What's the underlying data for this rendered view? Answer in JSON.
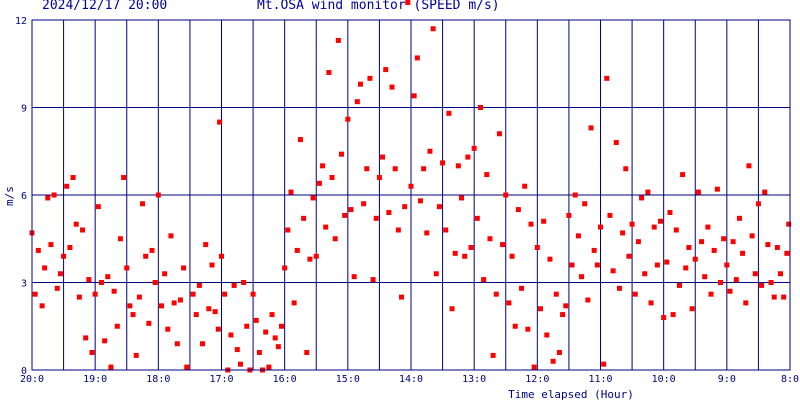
{
  "header": {
    "datetime": "2024/12/17 20:00",
    "title": "Mt.OSA wind monitor (SPEED m/s)"
  },
  "chart_data": {
    "type": "scatter",
    "ylabel": "m/s",
    "xlabel": "Time elapsed (Hour)",
    "ylim": [
      0,
      12
    ],
    "y_ticks": [
      0,
      3,
      6,
      9,
      12
    ],
    "x_ticks": [
      "20:0",
      "19:0",
      "18:0",
      "17:0",
      "16:0",
      "15:0",
      "14:0",
      "13:0",
      "12:0",
      "11:0",
      "10:0",
      "9:0",
      "8:0"
    ],
    "x_direction": "time runs backwards from 20:00 at left to 08:00 at right",
    "grid": true,
    "marker_color": "#ff0000",
    "grid_color": "#000080",
    "series": [
      {
        "points": [
          [
            0.0,
            4.7
          ],
          [
            0.05,
            2.6
          ],
          [
            0.1,
            4.1
          ],
          [
            0.16,
            2.2
          ],
          [
            0.2,
            3.5
          ],
          [
            0.25,
            5.9
          ],
          [
            0.3,
            4.3
          ],
          [
            0.35,
            6.0
          ],
          [
            0.4,
            2.8
          ],
          [
            0.45,
            3.3
          ],
          [
            0.5,
            3.9
          ],
          [
            0.55,
            6.3
          ],
          [
            0.6,
            4.2
          ],
          [
            0.65,
            6.6
          ],
          [
            0.7,
            5.0
          ],
          [
            0.75,
            2.5
          ],
          [
            0.8,
            4.8
          ],
          [
            0.85,
            1.1
          ],
          [
            0.9,
            3.1
          ],
          [
            0.95,
            0.6
          ],
          [
            1.0,
            2.6
          ],
          [
            1.05,
            5.6
          ],
          [
            1.1,
            3.0
          ],
          [
            1.15,
            1.0
          ],
          [
            1.2,
            3.2
          ],
          [
            1.25,
            0.1
          ],
          [
            1.3,
            2.7
          ],
          [
            1.35,
            1.5
          ],
          [
            1.4,
            4.5
          ],
          [
            1.45,
            6.6
          ],
          [
            1.5,
            3.5
          ],
          [
            1.55,
            2.2
          ],
          [
            1.6,
            1.9
          ],
          [
            1.65,
            0.5
          ],
          [
            1.7,
            2.5
          ],
          [
            1.75,
            5.7
          ],
          [
            1.8,
            3.9
          ],
          [
            1.85,
            1.6
          ],
          [
            1.9,
            4.1
          ],
          [
            1.95,
            3.0
          ],
          [
            2.0,
            6.0
          ],
          [
            2.05,
            2.2
          ],
          [
            2.1,
            3.3
          ],
          [
            2.15,
            1.4
          ],
          [
            2.2,
            4.6
          ],
          [
            2.25,
            2.3
          ],
          [
            2.3,
            0.9
          ],
          [
            2.35,
            2.4
          ],
          [
            2.4,
            3.5
          ],
          [
            2.45,
            0.1
          ],
          [
            2.55,
            2.6
          ],
          [
            2.6,
            1.9
          ],
          [
            2.65,
            2.9
          ],
          [
            2.7,
            0.9
          ],
          [
            2.75,
            4.3
          ],
          [
            2.8,
            2.1
          ],
          [
            2.85,
            3.6
          ],
          [
            2.9,
            2.0
          ],
          [
            2.95,
            1.4
          ],
          [
            2.97,
            8.5
          ],
          [
            3.0,
            3.9
          ],
          [
            3.05,
            2.6
          ],
          [
            3.1,
            0.0
          ],
          [
            3.15,
            1.2
          ],
          [
            3.2,
            2.9
          ],
          [
            3.25,
            0.7
          ],
          [
            3.3,
            0.2
          ],
          [
            3.35,
            3.0
          ],
          [
            3.4,
            1.5
          ],
          [
            3.45,
            0.0
          ],
          [
            3.5,
            2.6
          ],
          [
            3.55,
            1.7
          ],
          [
            3.6,
            0.6
          ],
          [
            3.65,
            0.0
          ],
          [
            3.7,
            1.3
          ],
          [
            3.75,
            0.1
          ],
          [
            3.8,
            1.9
          ],
          [
            3.85,
            1.1
          ],
          [
            3.9,
            0.8
          ],
          [
            3.95,
            1.5
          ],
          [
            4.0,
            3.5
          ],
          [
            4.05,
            4.8
          ],
          [
            4.1,
            6.1
          ],
          [
            4.15,
            2.3
          ],
          [
            4.2,
            4.1
          ],
          [
            4.25,
            7.9
          ],
          [
            4.3,
            5.2
          ],
          [
            4.35,
            0.6
          ],
          [
            4.4,
            3.8
          ],
          [
            4.45,
            5.9
          ],
          [
            4.5,
            3.9
          ],
          [
            4.55,
            6.4
          ],
          [
            4.6,
            7.0
          ],
          [
            4.65,
            4.9
          ],
          [
            4.7,
            10.2
          ],
          [
            4.75,
            6.6
          ],
          [
            4.8,
            4.5
          ],
          [
            4.85,
            11.3
          ],
          [
            4.9,
            7.4
          ],
          [
            4.95,
            5.3
          ],
          [
            5.0,
            8.6
          ],
          [
            5.05,
            5.5
          ],
          [
            5.1,
            3.2
          ],
          [
            5.15,
            9.2
          ],
          [
            5.2,
            9.8
          ],
          [
            5.25,
            5.7
          ],
          [
            5.3,
            6.9
          ],
          [
            5.35,
            10.0
          ],
          [
            5.4,
            3.1
          ],
          [
            5.45,
            5.2
          ],
          [
            5.5,
            6.6
          ],
          [
            5.55,
            7.3
          ],
          [
            5.6,
            10.3
          ],
          [
            5.65,
            5.4
          ],
          [
            5.7,
            9.7
          ],
          [
            5.75,
            6.9
          ],
          [
            5.8,
            4.8
          ],
          [
            5.85,
            2.5
          ],
          [
            5.9,
            5.6
          ],
          [
            5.95,
            12.6
          ],
          [
            6.0,
            6.3
          ],
          [
            6.05,
            9.4
          ],
          [
            6.1,
            10.7
          ],
          [
            6.15,
            5.8
          ],
          [
            6.2,
            6.9
          ],
          [
            6.25,
            4.7
          ],
          [
            6.3,
            7.5
          ],
          [
            6.35,
            11.7
          ],
          [
            6.4,
            3.3
          ],
          [
            6.45,
            5.6
          ],
          [
            6.5,
            7.1
          ],
          [
            6.55,
            4.8
          ],
          [
            6.6,
            8.8
          ],
          [
            6.65,
            2.1
          ],
          [
            6.7,
            4.0
          ],
          [
            6.75,
            7.0
          ],
          [
            6.8,
            5.9
          ],
          [
            6.85,
            3.9
          ],
          [
            6.9,
            7.3
          ],
          [
            6.95,
            4.2
          ],
          [
            7.0,
            7.6
          ],
          [
            7.05,
            5.2
          ],
          [
            7.1,
            9.0
          ],
          [
            7.15,
            3.1
          ],
          [
            7.2,
            6.7
          ],
          [
            7.25,
            4.5
          ],
          [
            7.3,
            0.5
          ],
          [
            7.35,
            2.6
          ],
          [
            7.4,
            8.1
          ],
          [
            7.45,
            4.3
          ],
          [
            7.5,
            6.0
          ],
          [
            7.55,
            2.3
          ],
          [
            7.6,
            3.9
          ],
          [
            7.65,
            1.5
          ],
          [
            7.7,
            5.5
          ],
          [
            7.75,
            2.8
          ],
          [
            7.8,
            6.3
          ],
          [
            7.85,
            1.4
          ],
          [
            7.9,
            5.0
          ],
          [
            7.95,
            0.1
          ],
          [
            8.0,
            4.2
          ],
          [
            8.05,
            2.1
          ],
          [
            8.1,
            5.1
          ],
          [
            8.15,
            1.2
          ],
          [
            8.2,
            3.8
          ],
          [
            8.25,
            0.3
          ],
          [
            8.3,
            2.6
          ],
          [
            8.35,
            0.6
          ],
          [
            8.4,
            1.9
          ],
          [
            8.45,
            2.2
          ],
          [
            8.5,
            5.3
          ],
          [
            8.55,
            3.6
          ],
          [
            8.6,
            6.0
          ],
          [
            8.65,
            4.6
          ],
          [
            8.7,
            3.2
          ],
          [
            8.75,
            5.7
          ],
          [
            8.8,
            2.4
          ],
          [
            8.85,
            8.3
          ],
          [
            8.9,
            4.1
          ],
          [
            8.95,
            3.6
          ],
          [
            9.0,
            4.9
          ],
          [
            9.05,
            0.2
          ],
          [
            9.1,
            10.0
          ],
          [
            9.15,
            5.3
          ],
          [
            9.2,
            3.4
          ],
          [
            9.25,
            7.8
          ],
          [
            9.3,
            2.8
          ],
          [
            9.35,
            4.7
          ],
          [
            9.4,
            6.9
          ],
          [
            9.45,
            3.9
          ],
          [
            9.5,
            5.0
          ],
          [
            9.55,
            2.6
          ],
          [
            9.6,
            4.4
          ],
          [
            9.65,
            5.9
          ],
          [
            9.7,
            3.3
          ],
          [
            9.75,
            6.1
          ],
          [
            9.8,
            2.3
          ],
          [
            9.85,
            4.9
          ],
          [
            9.9,
            3.6
          ],
          [
            9.95,
            5.1
          ],
          [
            10.0,
            1.8
          ],
          [
            10.05,
            3.7
          ],
          [
            10.1,
            5.4
          ],
          [
            10.15,
            1.9
          ],
          [
            10.2,
            4.8
          ],
          [
            10.25,
            2.9
          ],
          [
            10.3,
            6.7
          ],
          [
            10.35,
            3.5
          ],
          [
            10.4,
            4.2
          ],
          [
            10.45,
            2.1
          ],
          [
            10.5,
            3.8
          ],
          [
            10.55,
            6.1
          ],
          [
            10.6,
            4.4
          ],
          [
            10.65,
            3.2
          ],
          [
            10.7,
            4.9
          ],
          [
            10.75,
            2.6
          ],
          [
            10.8,
            4.1
          ],
          [
            10.85,
            6.2
          ],
          [
            10.9,
            3.0
          ],
          [
            10.95,
            4.5
          ],
          [
            11.0,
            3.6
          ],
          [
            11.05,
            2.7
          ],
          [
            11.1,
            4.4
          ],
          [
            11.15,
            3.1
          ],
          [
            11.2,
            5.2
          ],
          [
            11.25,
            4.0
          ],
          [
            11.3,
            2.3
          ],
          [
            11.35,
            7.0
          ],
          [
            11.4,
            4.6
          ],
          [
            11.45,
            3.3
          ],
          [
            11.5,
            5.7
          ],
          [
            11.55,
            2.9
          ],
          [
            11.6,
            6.1
          ],
          [
            11.65,
            4.3
          ],
          [
            11.7,
            3.0
          ],
          [
            11.75,
            2.5
          ],
          [
            11.8,
            4.2
          ],
          [
            11.85,
            3.3
          ],
          [
            11.9,
            2.5
          ],
          [
            11.95,
            4.0
          ],
          [
            11.98,
            5.0
          ]
        ]
      }
    ]
  }
}
